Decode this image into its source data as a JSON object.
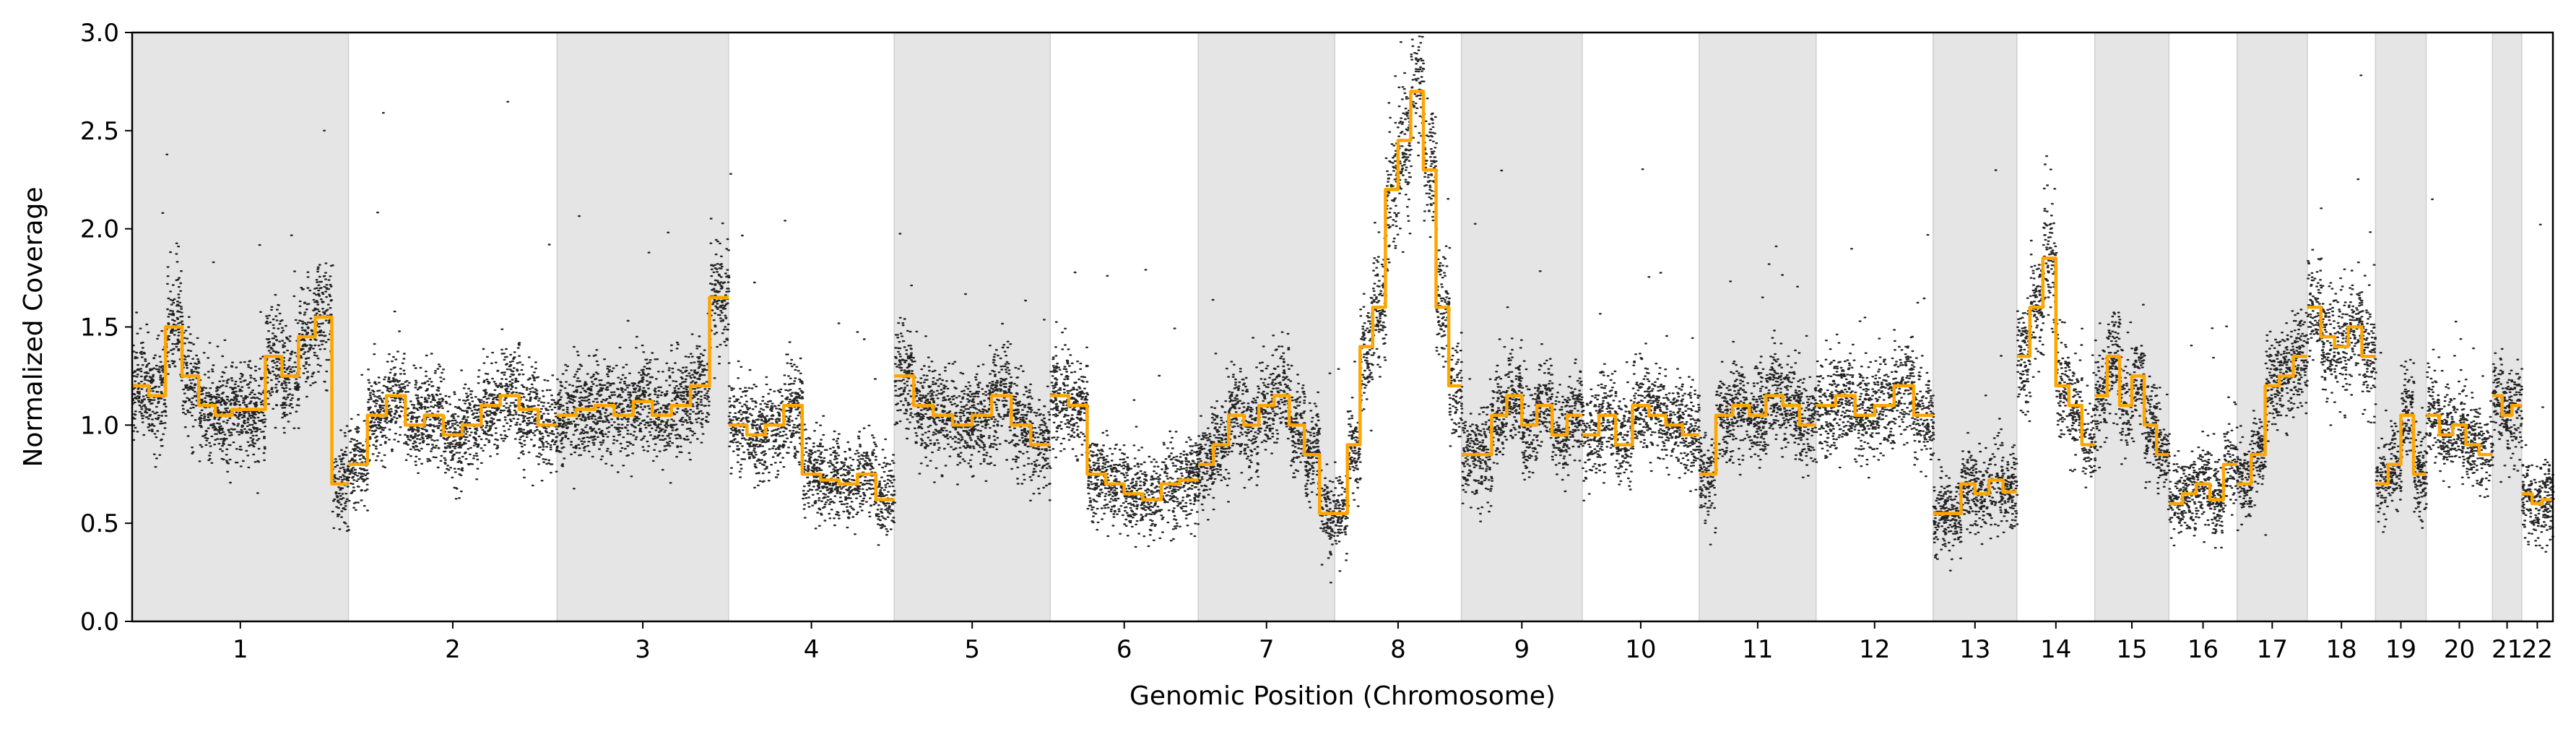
{
  "chart_data": {
    "type": "scatter",
    "xlabel": "Genomic Position (Chromosome)",
    "ylabel": "Normalized Coverage",
    "ylim": [
      0,
      3.0
    ],
    "yticks": [
      0.0,
      0.5,
      1.0,
      1.5,
      2.0,
      2.5,
      3.0
    ],
    "ytick_labels": [
      "0.0",
      "0.5",
      "1.0",
      "1.5",
      "2.0",
      "2.5",
      "3.0"
    ],
    "grid": false,
    "legend": "none",
    "chromosome_shading": "alternating grey bands (odd chromosomes shaded)",
    "colors": {
      "points": "#000000",
      "smoothed_line": "#ffa500",
      "band": "#e5e5e5"
    },
    "chromosomes": [
      {
        "label": "1",
        "weight": 5.55,
        "levels": [
          1.2,
          1.15,
          1.5,
          1.25,
          1.1,
          1.05,
          1.08,
          1.08,
          1.35,
          1.25,
          1.45,
          1.55,
          0.7
        ]
      },
      {
        "label": "2",
        "weight": 5.35,
        "levels": [
          0.8,
          1.05,
          1.15,
          1.0,
          1.05,
          0.95,
          1.0,
          1.1,
          1.15,
          1.08,
          1.0
        ]
      },
      {
        "label": "3",
        "weight": 4.4,
        "levels": [
          1.05,
          1.08,
          1.1,
          1.05,
          1.12,
          1.05,
          1.1,
          1.2,
          1.65
        ]
      },
      {
        "label": "4",
        "weight": 4.25,
        "levels": [
          1.0,
          0.95,
          1.0,
          1.1,
          0.75,
          0.72,
          0.7,
          0.75,
          0.62
        ]
      },
      {
        "label": "5",
        "weight": 4.0,
        "levels": [
          1.25,
          1.1,
          1.05,
          1.0,
          1.05,
          1.15,
          1.0,
          0.9
        ]
      },
      {
        "label": "6",
        "weight": 3.8,
        "levels": [
          1.15,
          1.1,
          0.75,
          0.7,
          0.65,
          0.62,
          0.7,
          0.72
        ]
      },
      {
        "label": "7",
        "weight": 3.5,
        "levels": [
          0.8,
          0.9,
          1.05,
          1.0,
          1.1,
          1.15,
          1.0,
          0.85,
          0.55
        ]
      },
      {
        "label": "8",
        "weight": 3.25,
        "levels": [
          0.55,
          0.9,
          1.4,
          1.6,
          2.2,
          2.45,
          2.7,
          2.3,
          1.6,
          1.2
        ]
      },
      {
        "label": "9",
        "weight": 3.1,
        "levels": [
          0.85,
          0.85,
          1.05,
          1.15,
          1.0,
          1.1,
          0.95,
          1.05
        ]
      },
      {
        "label": "10",
        "weight": 3.0,
        "levels": [
          0.95,
          1.05,
          0.9,
          1.1,
          1.05,
          1.0,
          0.95
        ]
      },
      {
        "label": "11",
        "weight": 3.0,
        "levels": [
          0.75,
          1.05,
          1.1,
          1.05,
          1.15,
          1.1,
          1.0
        ]
      },
      {
        "label": "12",
        "weight": 3.0,
        "levels": [
          1.1,
          1.15,
          1.05,
          1.1,
          1.2,
          1.05
        ]
      },
      {
        "label": "13",
        "weight": 2.15,
        "levels": [
          0.55,
          0.55,
          0.7,
          0.65,
          0.72,
          0.66
        ]
      },
      {
        "label": "14",
        "weight": 2.0,
        "levels": [
          1.35,
          1.6,
          1.85,
          1.2,
          1.1,
          0.9
        ]
      },
      {
        "label": "15",
        "weight": 1.9,
        "levels": [
          1.15,
          1.35,
          1.1,
          1.25,
          1.0,
          0.85
        ]
      },
      {
        "label": "16",
        "weight": 1.75,
        "levels": [
          0.6,
          0.65,
          0.7,
          0.62,
          0.8
        ]
      },
      {
        "label": "17",
        "weight": 1.8,
        "levels": [
          0.7,
          0.85,
          1.2,
          1.25,
          1.35
        ]
      },
      {
        "label": "18",
        "weight": 1.75,
        "levels": [
          1.6,
          1.45,
          1.4,
          1.5,
          1.35
        ]
      },
      {
        "label": "19",
        "weight": 1.3,
        "levels": [
          0.7,
          0.8,
          1.05,
          0.75
        ]
      },
      {
        "label": "20",
        "weight": 1.7,
        "levels": [
          1.05,
          0.95,
          1.0,
          0.9,
          0.85
        ]
      },
      {
        "label": "21",
        "weight": 0.75,
        "levels": [
          1.15,
          1.05,
          1.1
        ]
      },
      {
        "label": "22",
        "weight": 0.8,
        "levels": [
          0.65,
          0.6,
          0.62
        ]
      }
    ]
  }
}
